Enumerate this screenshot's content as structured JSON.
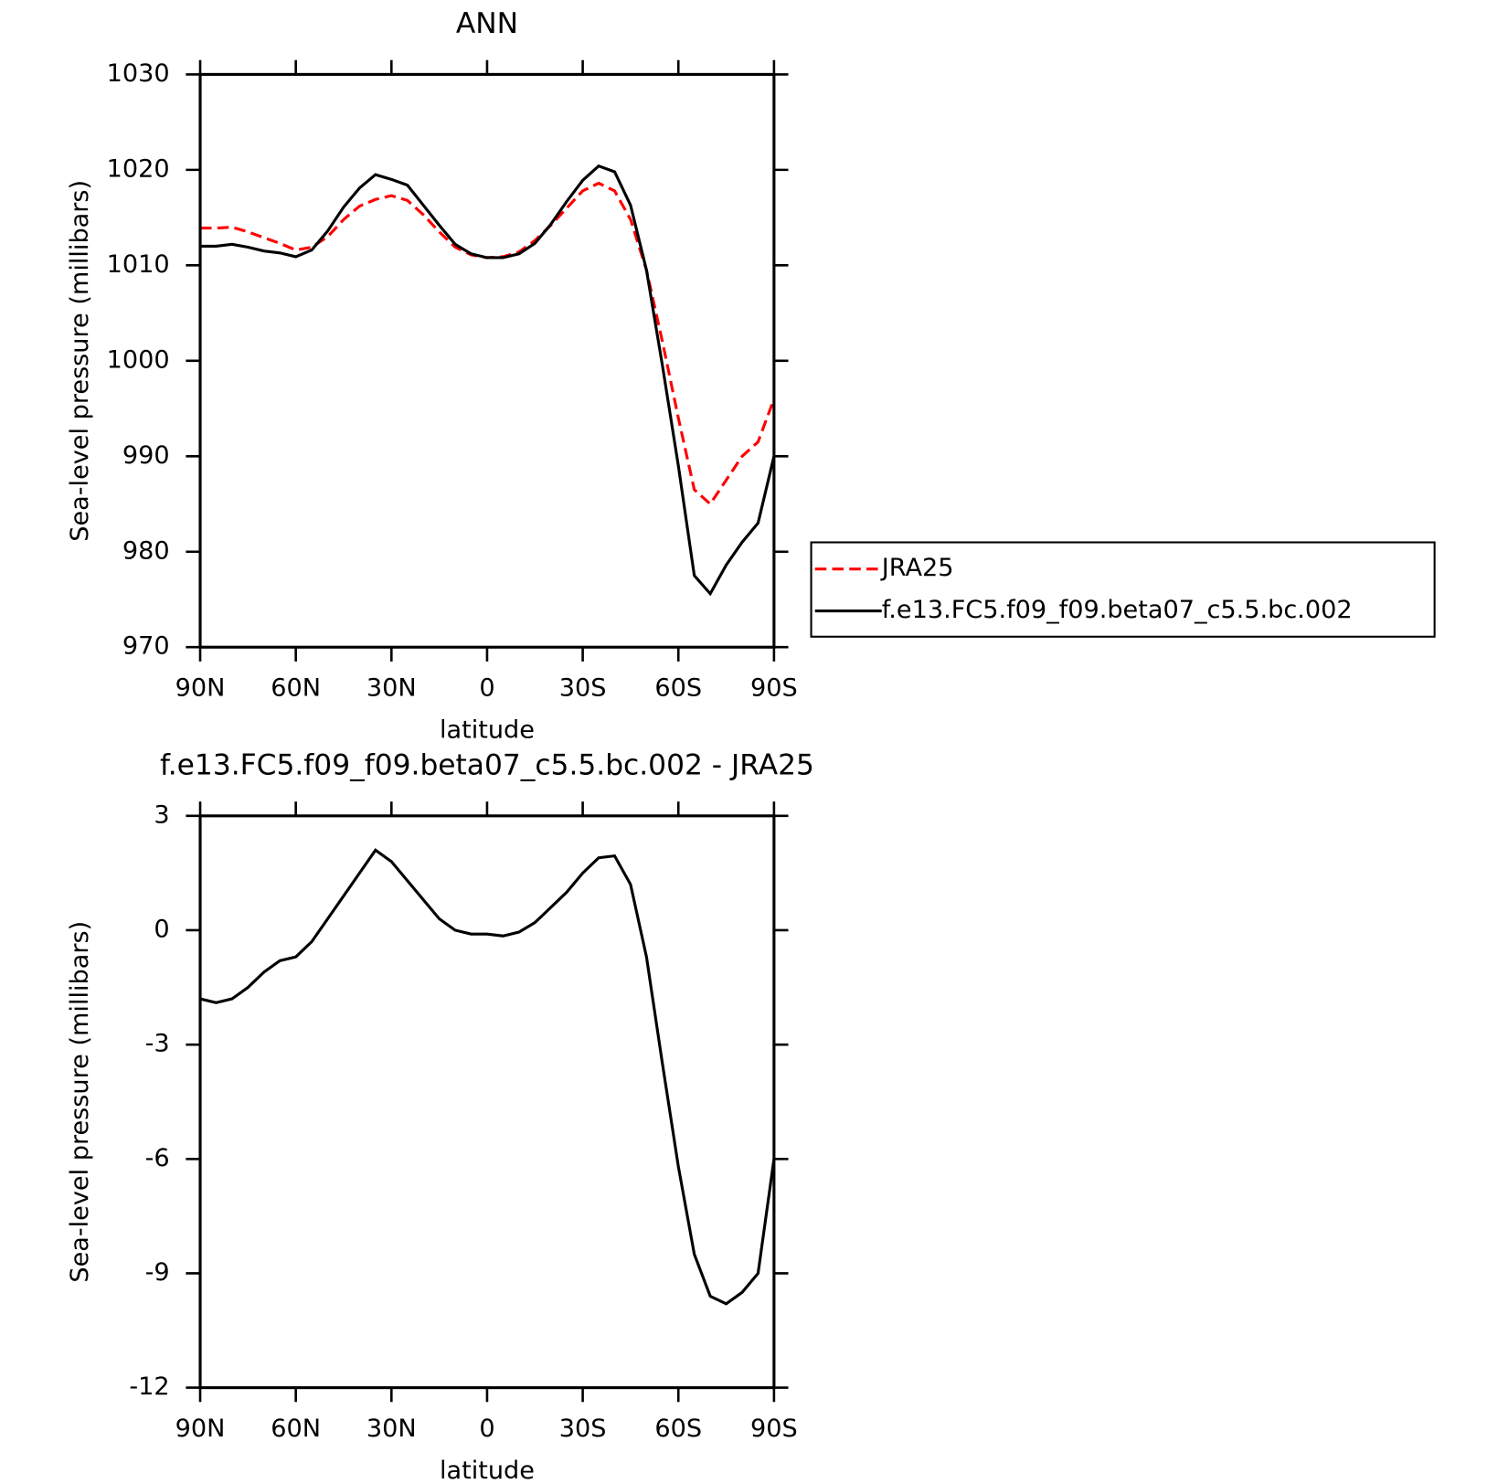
{
  "chart_data": [
    {
      "type": "line",
      "title": "ANN",
      "xlabel": "latitude",
      "ylabel": "Sea-level pressure (millibars)",
      "x": [
        90,
        85,
        80,
        75,
        70,
        65,
        60,
        55,
        50,
        45,
        40,
        35,
        30,
        25,
        20,
        15,
        10,
        5,
        0,
        -5,
        -10,
        -15,
        -20,
        -25,
        -30,
        -35,
        -40,
        -45,
        -50,
        -55,
        -60,
        -65,
        -70,
        -75,
        -80,
        -85,
        -90
      ],
      "series": [
        {
          "name": "JRA25",
          "color": "#ff0000",
          "linestyle": "dashed",
          "values": [
            1013.9,
            1013.9,
            1014.0,
            1013.5,
            1012.9,
            1012.3,
            1011.6,
            1011.9,
            1013.0,
            1014.8,
            1016.2,
            1016.9,
            1017.3,
            1016.8,
            1015.3,
            1013.5,
            1011.9,
            1011.1,
            1010.8,
            1010.9,
            1011.4,
            1012.6,
            1014.2,
            1016.0,
            1017.8,
            1018.6,
            1017.8,
            1014.8,
            1009.5,
            1002.0,
            994.0,
            986.5,
            985.0,
            987.5,
            990.0,
            991.5,
            996.0
          ]
        },
        {
          "name": "f.e13.FC5.f09_f09.beta07_c5.5.bc.002",
          "color": "#000000",
          "linestyle": "solid",
          "values": [
            1012.0,
            1012.0,
            1012.2,
            1011.9,
            1011.5,
            1011.3,
            1010.9,
            1011.6,
            1013.6,
            1016.1,
            1018.1,
            1019.5,
            1019.0,
            1018.4,
            1016.3,
            1014.2,
            1012.2,
            1011.2,
            1010.8,
            1010.8,
            1011.2,
            1012.3,
            1014.3,
            1016.7,
            1018.9,
            1020.4,
            1019.8,
            1016.3,
            1009.5,
            999.5,
            989.0,
            977.5,
            975.6,
            978.6,
            981.0,
            983.0,
            990.0
          ]
        }
      ],
      "xlim": [
        90,
        -90
      ],
      "xticks": [
        {
          "value": 90,
          "label": "90N"
        },
        {
          "value": 60,
          "label": "60N"
        },
        {
          "value": 30,
          "label": "30N"
        },
        0,
        {
          "value": -30,
          "label": "30S"
        },
        {
          "value": -60,
          "label": "60S"
        },
        {
          "value": -90,
          "label": "90S"
        }
      ],
      "ylim": [
        970,
        1030
      ],
      "yticks": [
        970,
        980,
        990,
        1000,
        1010,
        1020,
        1030
      ],
      "legend": "right"
    },
    {
      "type": "line",
      "title": "f.e13.FC5.f09_f09.beta07_c5.5.bc.002 - JRA25",
      "xlabel": "latitude",
      "ylabel": "Sea-level pressure (millibars)",
      "x": [
        90,
        85,
        80,
        75,
        70,
        65,
        60,
        55,
        50,
        45,
        40,
        35,
        30,
        25,
        20,
        15,
        10,
        5,
        0,
        -5,
        -10,
        -15,
        -20,
        -25,
        -30,
        -35,
        -40,
        -45,
        -50,
        -55,
        -60,
        -65,
        -70,
        -75,
        -80,
        -85,
        -90
      ],
      "series": [
        {
          "color": "#000000",
          "linestyle": "solid",
          "values": [
            -1.8,
            -1.9,
            -1.8,
            -1.5,
            -1.1,
            -0.8,
            -0.7,
            -0.3,
            0.3,
            0.9,
            1.5,
            2.1,
            1.8,
            1.3,
            0.8,
            0.3,
            0.0,
            -0.1,
            -0.1,
            -0.15,
            -0.05,
            0.2,
            0.6,
            1.0,
            1.5,
            1.9,
            1.95,
            1.2,
            -0.7,
            -3.5,
            -6.2,
            -8.5,
            -9.6,
            -9.8,
            -9.5,
            -9.0,
            -6.0
          ]
        }
      ],
      "xlim": [
        90,
        -90
      ],
      "xticks": [
        {
          "value": 90,
          "label": "90N"
        },
        {
          "value": 60,
          "label": "60N"
        },
        {
          "value": 30,
          "label": "30N"
        },
        0,
        {
          "value": -30,
          "label": "30S"
        },
        {
          "value": -60,
          "label": "60S"
        },
        {
          "value": -90,
          "label": "90S"
        }
      ],
      "ylim": [
        -12,
        3
      ],
      "yticks": [
        -12,
        -9,
        -6,
        -3,
        0,
        3
      ]
    }
  ]
}
